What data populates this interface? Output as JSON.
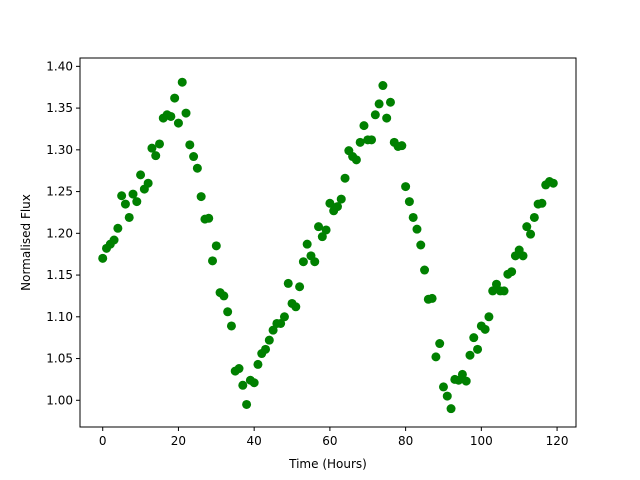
{
  "chart_data": {
    "type": "scatter",
    "title": "",
    "xlabel": "Time (Hours)",
    "ylabel": "Normalised Flux",
    "xlim": [
      -6,
      125
    ],
    "ylim": [
      0.968,
      1.41
    ],
    "xticks": [
      0,
      20,
      40,
      60,
      80,
      100,
      120
    ],
    "yticks": [
      1.0,
      1.05,
      1.1,
      1.15,
      1.2,
      1.25,
      1.3,
      1.35,
      1.4
    ],
    "ytick_labels": [
      "1.00",
      "1.05",
      "1.10",
      "1.15",
      "1.20",
      "1.25",
      "1.30",
      "1.35",
      "1.40"
    ],
    "grid": false,
    "legend": "none",
    "color": "#008000",
    "series": [
      {
        "points": [
          [
            0,
            1.17
          ],
          [
            1,
            1.182
          ],
          [
            2,
            1.187
          ],
          [
            3,
            1.192
          ],
          [
            4,
            1.206
          ],
          [
            5,
            1.245
          ],
          [
            6,
            1.235
          ],
          [
            7,
            1.219
          ],
          [
            8,
            1.247
          ],
          [
            9,
            1.238
          ],
          [
            10,
            1.27
          ],
          [
            11,
            1.253
          ],
          [
            12,
            1.26
          ],
          [
            13,
            1.302
          ],
          [
            14,
            1.293
          ],
          [
            15,
            1.307
          ],
          [
            16,
            1.338
          ],
          [
            17,
            1.342
          ],
          [
            18,
            1.34
          ],
          [
            19,
            1.362
          ],
          [
            20,
            1.332
          ],
          [
            21,
            1.381
          ],
          [
            22,
            1.344
          ],
          [
            23,
            1.306
          ],
          [
            24,
            1.292
          ],
          [
            25,
            1.278
          ],
          [
            26,
            1.244
          ],
          [
            27,
            1.217
          ],
          [
            28,
            1.218
          ],
          [
            29,
            1.167
          ],
          [
            30,
            1.185
          ],
          [
            31,
            1.129
          ],
          [
            32,
            1.125
          ],
          [
            33,
            1.106
          ],
          [
            34,
            1.089
          ],
          [
            35,
            1.035
          ],
          [
            36,
            1.038
          ],
          [
            37,
            1.018
          ],
          [
            38,
            0.995
          ],
          [
            39,
            1.024
          ],
          [
            40,
            1.021
          ],
          [
            41,
            1.043
          ],
          [
            42,
            1.056
          ],
          [
            43,
            1.061
          ],
          [
            44,
            1.072
          ],
          [
            45,
            1.084
          ],
          [
            46,
            1.092
          ],
          [
            47,
            1.092
          ],
          [
            48,
            1.1
          ],
          [
            49,
            1.14
          ],
          [
            50,
            1.116
          ],
          [
            51,
            1.112
          ],
          [
            52,
            1.136
          ],
          [
            53,
            1.166
          ],
          [
            54,
            1.187
          ],
          [
            55,
            1.173
          ],
          [
            56,
            1.166
          ],
          [
            57,
            1.208
          ],
          [
            58,
            1.196
          ],
          [
            59,
            1.204
          ],
          [
            60,
            1.236
          ],
          [
            61,
            1.227
          ],
          [
            62,
            1.232
          ],
          [
            63,
            1.241
          ],
          [
            64,
            1.266
          ],
          [
            65,
            1.299
          ],
          [
            66,
            1.292
          ],
          [
            67,
            1.288
          ],
          [
            68,
            1.309
          ],
          [
            69,
            1.329
          ],
          [
            70,
            1.312
          ],
          [
            71,
            1.312
          ],
          [
            72,
            1.342
          ],
          [
            73,
            1.355
          ],
          [
            74,
            1.377
          ],
          [
            75,
            1.338
          ],
          [
            76,
            1.357
          ],
          [
            77,
            1.309
          ],
          [
            78,
            1.304
          ],
          [
            79,
            1.305
          ],
          [
            80,
            1.256
          ],
          [
            81,
            1.238
          ],
          [
            82,
            1.219
          ],
          [
            83,
            1.205
          ],
          [
            84,
            1.186
          ],
          [
            85,
            1.156
          ],
          [
            86,
            1.121
          ],
          [
            87,
            1.122
          ],
          [
            88,
            1.052
          ],
          [
            89,
            1.068
          ],
          [
            90,
            1.016
          ],
          [
            91,
            1.005
          ],
          [
            92,
            0.99
          ],
          [
            93,
            1.025
          ],
          [
            94,
            1.024
          ],
          [
            95,
            1.031
          ],
          [
            96,
            1.023
          ],
          [
            97,
            1.054
          ],
          [
            98,
            1.075
          ],
          [
            99,
            1.061
          ],
          [
            100,
            1.089
          ],
          [
            101,
            1.085
          ],
          [
            102,
            1.1
          ],
          [
            103,
            1.131
          ],
          [
            104,
            1.139
          ],
          [
            105,
            1.131
          ],
          [
            106,
            1.131
          ],
          [
            107,
            1.151
          ],
          [
            108,
            1.154
          ],
          [
            109,
            1.173
          ],
          [
            110,
            1.18
          ],
          [
            111,
            1.173
          ],
          [
            112,
            1.208
          ],
          [
            113,
            1.199
          ],
          [
            114,
            1.219
          ],
          [
            115,
            1.235
          ],
          [
            116,
            1.236
          ],
          [
            117,
            1.258
          ],
          [
            118,
            1.262
          ],
          [
            119,
            1.26
          ]
        ]
      }
    ]
  }
}
